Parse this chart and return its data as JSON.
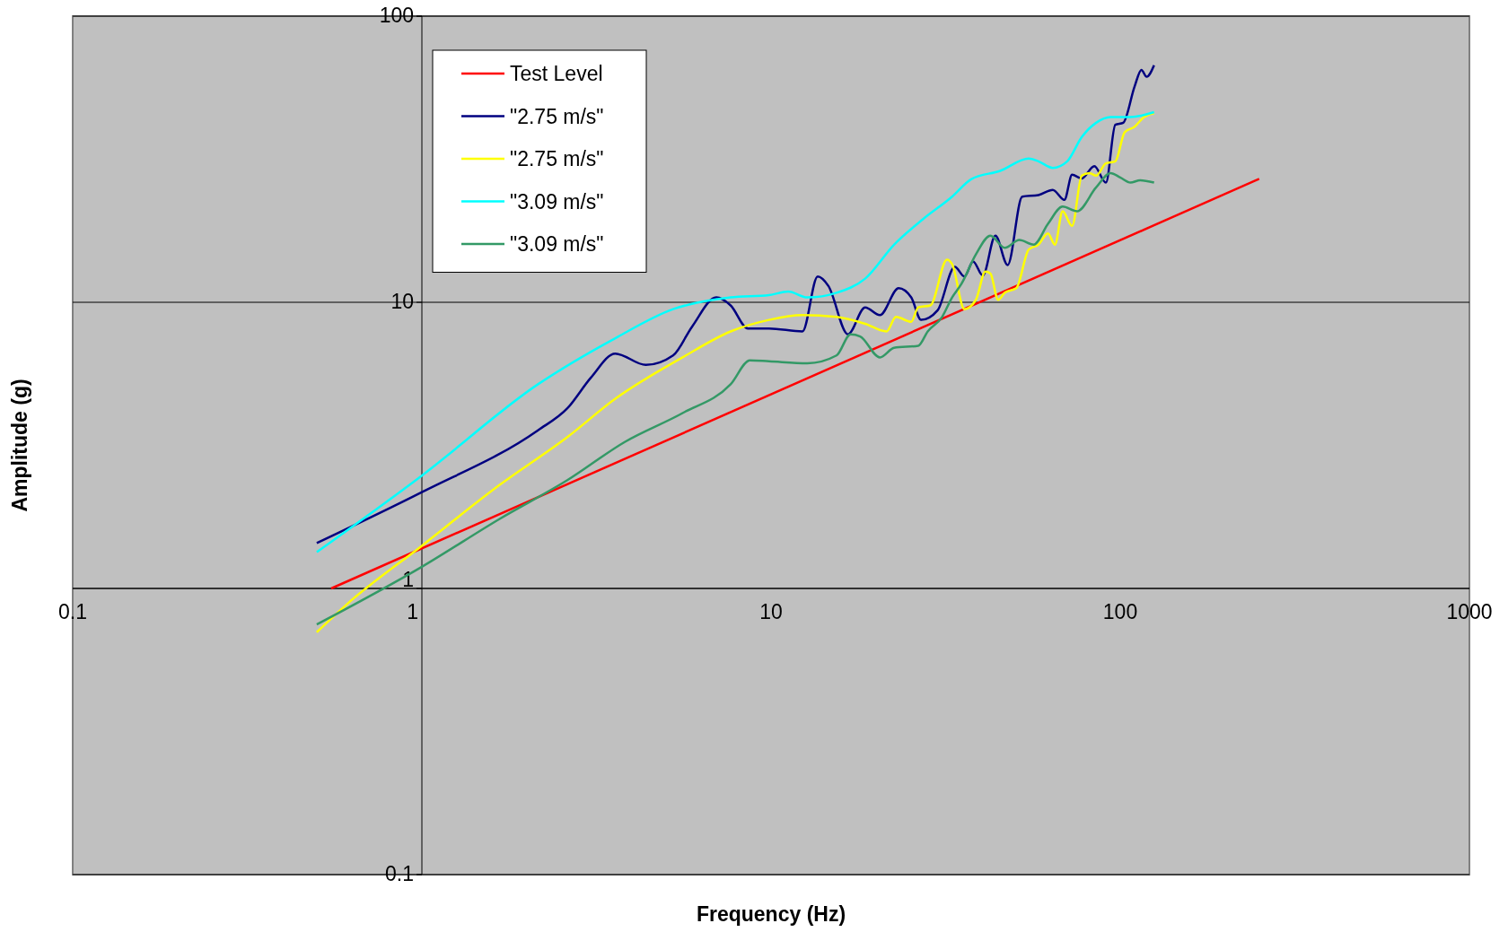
{
  "chart_data": {
    "type": "line",
    "xlabel": "Frequency (Hz)",
    "ylabel": "Amplitude (g)",
    "log": "xy",
    "grid": "y",
    "legend": "top left",
    "xlim": [
      0.1,
      1000
    ],
    "xticks": [
      0.1,
      1,
      10,
      100,
      1000
    ],
    "ylim": [
      0.1,
      100
    ],
    "yticks": [
      0.1,
      1,
      10,
      100
    ],
    "series": [
      {
        "name": "Test Level",
        "color": "#ff0000",
        "x": [
          0.55,
          250
        ],
        "values": [
          1,
          27
        ]
      },
      {
        "name": "\"2.75 m/s\"",
        "color": "#000080",
        "x": [
          0.5,
          1,
          2.15,
          2.61,
          3.05,
          3.58,
          4.38,
          5.24,
          5.94,
          6.97,
          7.66,
          8.59,
          9.87,
          12.3,
          13.6,
          14.6,
          16.6,
          18.6,
          20.5,
          23.2,
          25.2,
          26.9,
          30,
          33.6,
          35.8,
          37.9,
          40.4,
          43.9,
          47.6,
          52.4,
          58.3,
          64.1,
          69.2,
          72.8,
          77.6,
          84.3,
          91,
          96.8,
          102,
          110,
          115,
          119,
          125
        ],
        "values": [
          1.44,
          2.17,
          3.57,
          4.26,
          5.46,
          6.62,
          6.04,
          6.52,
          8.22,
          10.4,
          9.75,
          8.09,
          8.1,
          7.91,
          12.3,
          11.4,
          7.73,
          9.6,
          9.02,
          11.2,
          10.4,
          8.68,
          9.38,
          13.3,
          12.3,
          13.9,
          12.4,
          17.1,
          13.5,
          23.4,
          23.7,
          24.7,
          22.8,
          27.9,
          27.1,
          29.9,
          26.2,
          41.7,
          42.4,
          56.9,
          64.9,
          61.4,
          67.4
        ]
      },
      {
        "name": "\"2.75 m/s\"",
        "color": "#ffff00",
        "x": [
          0.5,
          0.605,
          1,
          1.67,
          2.61,
          3.58,
          5.58,
          7.66,
          9.87,
          12.3,
          15.4,
          18.6,
          21.4,
          22.8,
          25.2,
          26.4,
          28.6,
          31.9,
          33,
          35.8,
          38.6,
          41.1,
          42.5,
          44.7,
          46.7,
          50.4,
          54.7,
          58.3,
          62.1,
          65,
          68.4,
          72.8,
          77.6,
          81.6,
          85.3,
          91,
          96.8,
          103,
          110,
          117,
          125
        ],
        "values": [
          0.703,
          0.873,
          1.41,
          2.3,
          3.38,
          4.6,
          6.42,
          7.91,
          8.68,
          9.02,
          8.89,
          8.41,
          7.91,
          8.89,
          8.55,
          9.6,
          9.75,
          14.1,
          13.6,
          9.46,
          10.2,
          12.8,
          12.6,
          10.2,
          10.8,
          11.2,
          15.3,
          15.9,
          17.4,
          15.9,
          20.8,
          18.5,
          27.7,
          28.3,
          27.7,
          30.6,
          31.1,
          39.3,
          41.1,
          44.4,
          45.8
        ]
      },
      {
        "name": "\"3.09 m/s\"",
        "color": "#00ffff",
        "x": [
          0.5,
          1,
          2.15,
          3.58,
          5.24,
          7.66,
          9.87,
          11.2,
          12.7,
          15.4,
          18.6,
          22.5,
          27.2,
          33,
          37.4,
          45.3,
          54.7,
          58.3,
          64.1,
          70.5,
          77.6,
          85.3,
          93.8,
          107,
          125
        ],
        "values": [
          1.34,
          2.48,
          5.17,
          7.49,
          9.46,
          10.4,
          10.6,
          10.9,
          10.4,
          10.8,
          12.1,
          15.9,
          19.5,
          23.4,
          26.9,
          28.8,
          31.8,
          31.1,
          29.5,
          31.1,
          37.8,
          42.4,
          44.4,
          44.4,
          46.2
        ]
      },
      {
        "name": "\"3.09 m/s\"",
        "color": "#339966",
        "x": [
          0.5,
          1,
          1.67,
          2.61,
          3.81,
          5.58,
          7.66,
          8.7,
          9.87,
          12.7,
          15.4,
          16.9,
          18,
          20.5,
          22.5,
          26.4,
          28.1,
          30.9,
          33,
          35.1,
          38.6,
          42.5,
          46.7,
          51.4,
          56.5,
          62.1,
          68.4,
          75.2,
          85.3,
          93.8,
          100,
          107,
          114,
          125
        ],
        "values": [
          0.748,
          1.19,
          1.75,
          2.39,
          3.25,
          4.1,
          5.17,
          6.27,
          6.22,
          6.12,
          6.52,
          7.73,
          7.6,
          6.42,
          6.93,
          7.05,
          7.91,
          8.89,
          10.4,
          11.6,
          14.7,
          17.1,
          15.5,
          16.5,
          15.9,
          18.8,
          21.6,
          20.8,
          25.2,
          28.3,
          27.3,
          26.2,
          26.7,
          26.2
        ]
      }
    ]
  }
}
